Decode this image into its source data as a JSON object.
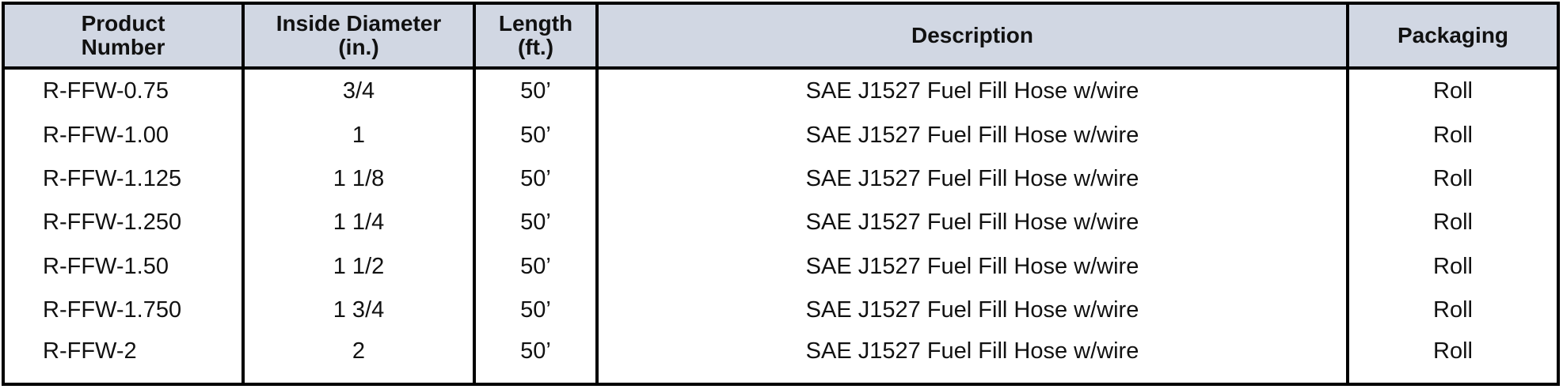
{
  "table": {
    "headers": [
      "Product Number",
      "Inside Diameter (in.)",
      "Length (ft.)",
      "Description",
      "Packaging"
    ],
    "header_lines": [
      [
        "Product",
        "Number"
      ],
      [
        "Inside Diameter",
        "(in.)"
      ],
      [
        "Length",
        "(ft.)"
      ],
      [
        "Description"
      ],
      [
        "Packaging"
      ]
    ],
    "header_bg": "#d1d7e3",
    "rows": [
      [
        "R-FFW-0.75",
        "3/4",
        "50’",
        "SAE J1527 Fuel Fill Hose w/wire",
        "Roll"
      ],
      [
        "R-FFW-1.00",
        "1",
        "50’",
        "SAE J1527 Fuel Fill Hose w/wire",
        "Roll"
      ],
      [
        "R-FFW-1.125",
        "1 1/8",
        "50’",
        "SAE J1527 Fuel Fill Hose w/wire",
        "Roll"
      ],
      [
        "R-FFW-1.250",
        "1 1/4",
        "50’",
        "SAE J1527 Fuel Fill Hose w/wire",
        "Roll"
      ],
      [
        "R-FFW-1.50",
        "1 1/2",
        "50’",
        "SAE J1527 Fuel Fill Hose w/wire",
        "Roll"
      ],
      [
        "R-FFW-1.750",
        "1 3/4",
        "50’",
        "SAE J1527 Fuel Fill Hose w/wire",
        "Roll"
      ],
      [
        "R-FFW-2",
        "2",
        "50’",
        "SAE J1527 Fuel Fill Hose w/wire",
        "Roll"
      ]
    ]
  }
}
